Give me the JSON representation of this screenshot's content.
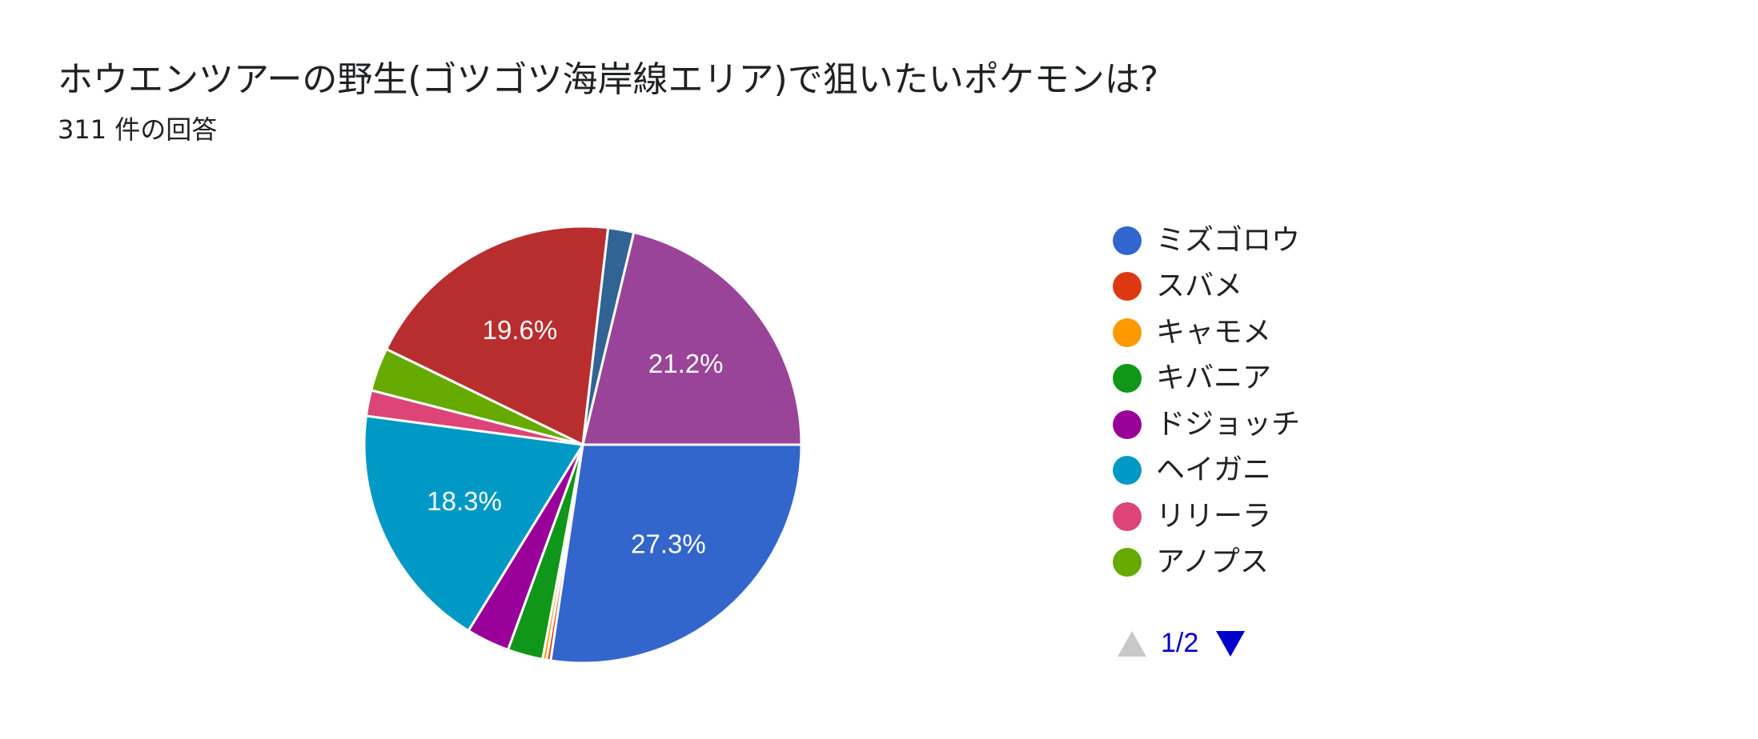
{
  "header": {
    "title": "ホウエンツアーの野生(ゴツゴツ海岸線エリア)で狙いたいポケモンは?",
    "subtitle": "311 件の回答"
  },
  "chart_data": {
    "type": "pie",
    "title": "ホウエンツアーの野生(ゴツゴツ海岸線エリア)で狙いたいポケモンは?",
    "total_responses": 311,
    "legend_position": "right",
    "legend_page": "1/2",
    "slices": [
      {
        "label": "ミズゴロウ",
        "value": 27.3,
        "color": "#3366cc",
        "data_label": "27.3%"
      },
      {
        "label": "スバメ",
        "value": 0.3,
        "color": "#dc3912",
        "data_label": ""
      },
      {
        "label": "キャモメ",
        "value": 0.3,
        "color": "#ff9900",
        "data_label": ""
      },
      {
        "label": "キバニア",
        "value": 2.6,
        "color": "#109618",
        "data_label": ""
      },
      {
        "label": "ドジョッチ",
        "value": 3.2,
        "color": "#990099",
        "data_label": ""
      },
      {
        "label": "ヘイガニ",
        "value": 18.3,
        "color": "#0099c6",
        "data_label": "18.3%"
      },
      {
        "label": "リリーラ",
        "value": 1.9,
        "color": "#dd4477",
        "data_label": ""
      },
      {
        "label": "アノプス",
        "value": 3.2,
        "color": "#66aa00",
        "data_label": ""
      },
      {
        "label": "",
        "value": 19.6,
        "color": "#b82e2e",
        "data_label": "19.6%"
      },
      {
        "label": "",
        "value": 1.9,
        "color": "#316395",
        "data_label": ""
      },
      {
        "label": "",
        "value": 21.2,
        "color": "#994499",
        "data_label": "21.2%"
      }
    ],
    "legend_visible_count": 8
  },
  "pager": {
    "label": "1/2",
    "prev_color": "#c8c8c8",
    "next_color": "#0000cc"
  }
}
